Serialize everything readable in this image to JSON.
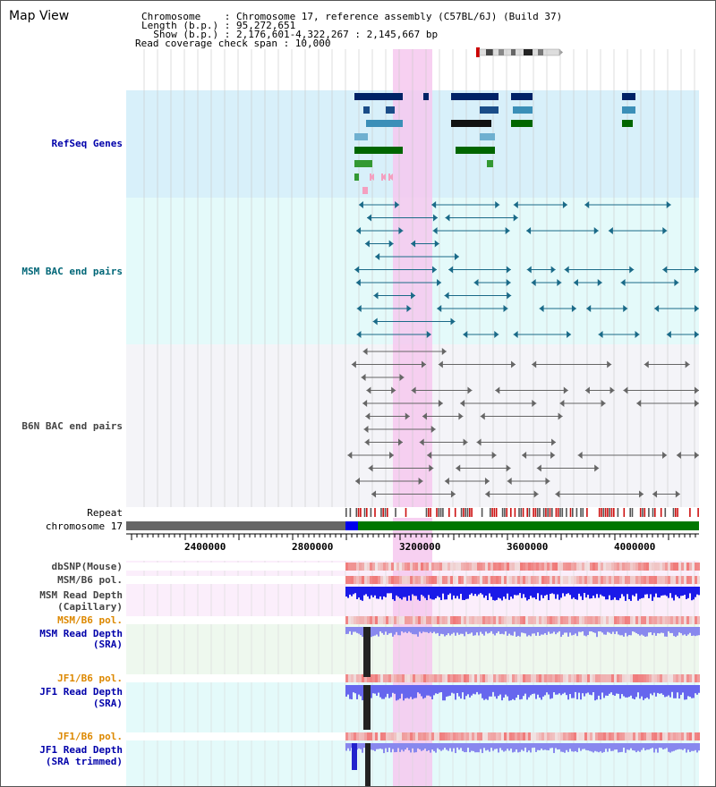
{
  "title": "Map View",
  "info": {
    "line1": "Chromosome    : Chromosome 17, reference assembly (C57BL/6J) (Build 37)",
    "line2": "Length (b.p.) : 95,272,651",
    "line3": "  Show (b.p.) : 2,176,601-4,322,267 : 2,145,667 bp",
    "line4": "Read coverage check span : 10,000"
  },
  "tracks": {
    "refseq": "RefSeq Genes",
    "msm_bac": "MSM BAC end pairs",
    "b6n_bac": "B6N BAC end pairs",
    "repeat": "Repeat",
    "chromosome": "chromosome 17",
    "dbsnp": "dbSNP(Mouse)",
    "msm_b6_pol_1": "MSM/B6 pol.",
    "msm_read_depth_cap_1": "MSM Read Depth",
    "msm_read_depth_cap_2": "(Capillary)",
    "msm_b6_pol_2": "MSM/B6 pol.",
    "msm_read_depth_sra_1": "MSM Read Depth",
    "msm_read_depth_sra_2": "(SRA)",
    "jf1_b6_pol_1": "JF1/B6 pol.",
    "jf1_read_depth_sra_1": "JF1 Read Depth",
    "jf1_read_depth_sra_2": "(SRA)",
    "jf1_b6_pol_2": "JF1/B6 pol.",
    "jf1_read_depth_trim_1": "JF1 Read Depth",
    "jf1_read_depth_trim_2": "(SRA trimmed)"
  },
  "ruler": {
    "labels": [
      "2400000",
      "2800000",
      "3200000",
      "3600000",
      "4000000"
    ]
  },
  "colors": {
    "label_blue": "#0000aa",
    "label_teal": "#006677",
    "label_gray": "#444444",
    "label_orange": "#dd8800",
    "refseq_bg": "#d8f0fa",
    "msm_bg": "#e4fafa",
    "b6n_bg": "#f4f4f8",
    "highlight": "#f6c8ee",
    "chromosome": "#007700",
    "depth": "#3333ee"
  }
}
